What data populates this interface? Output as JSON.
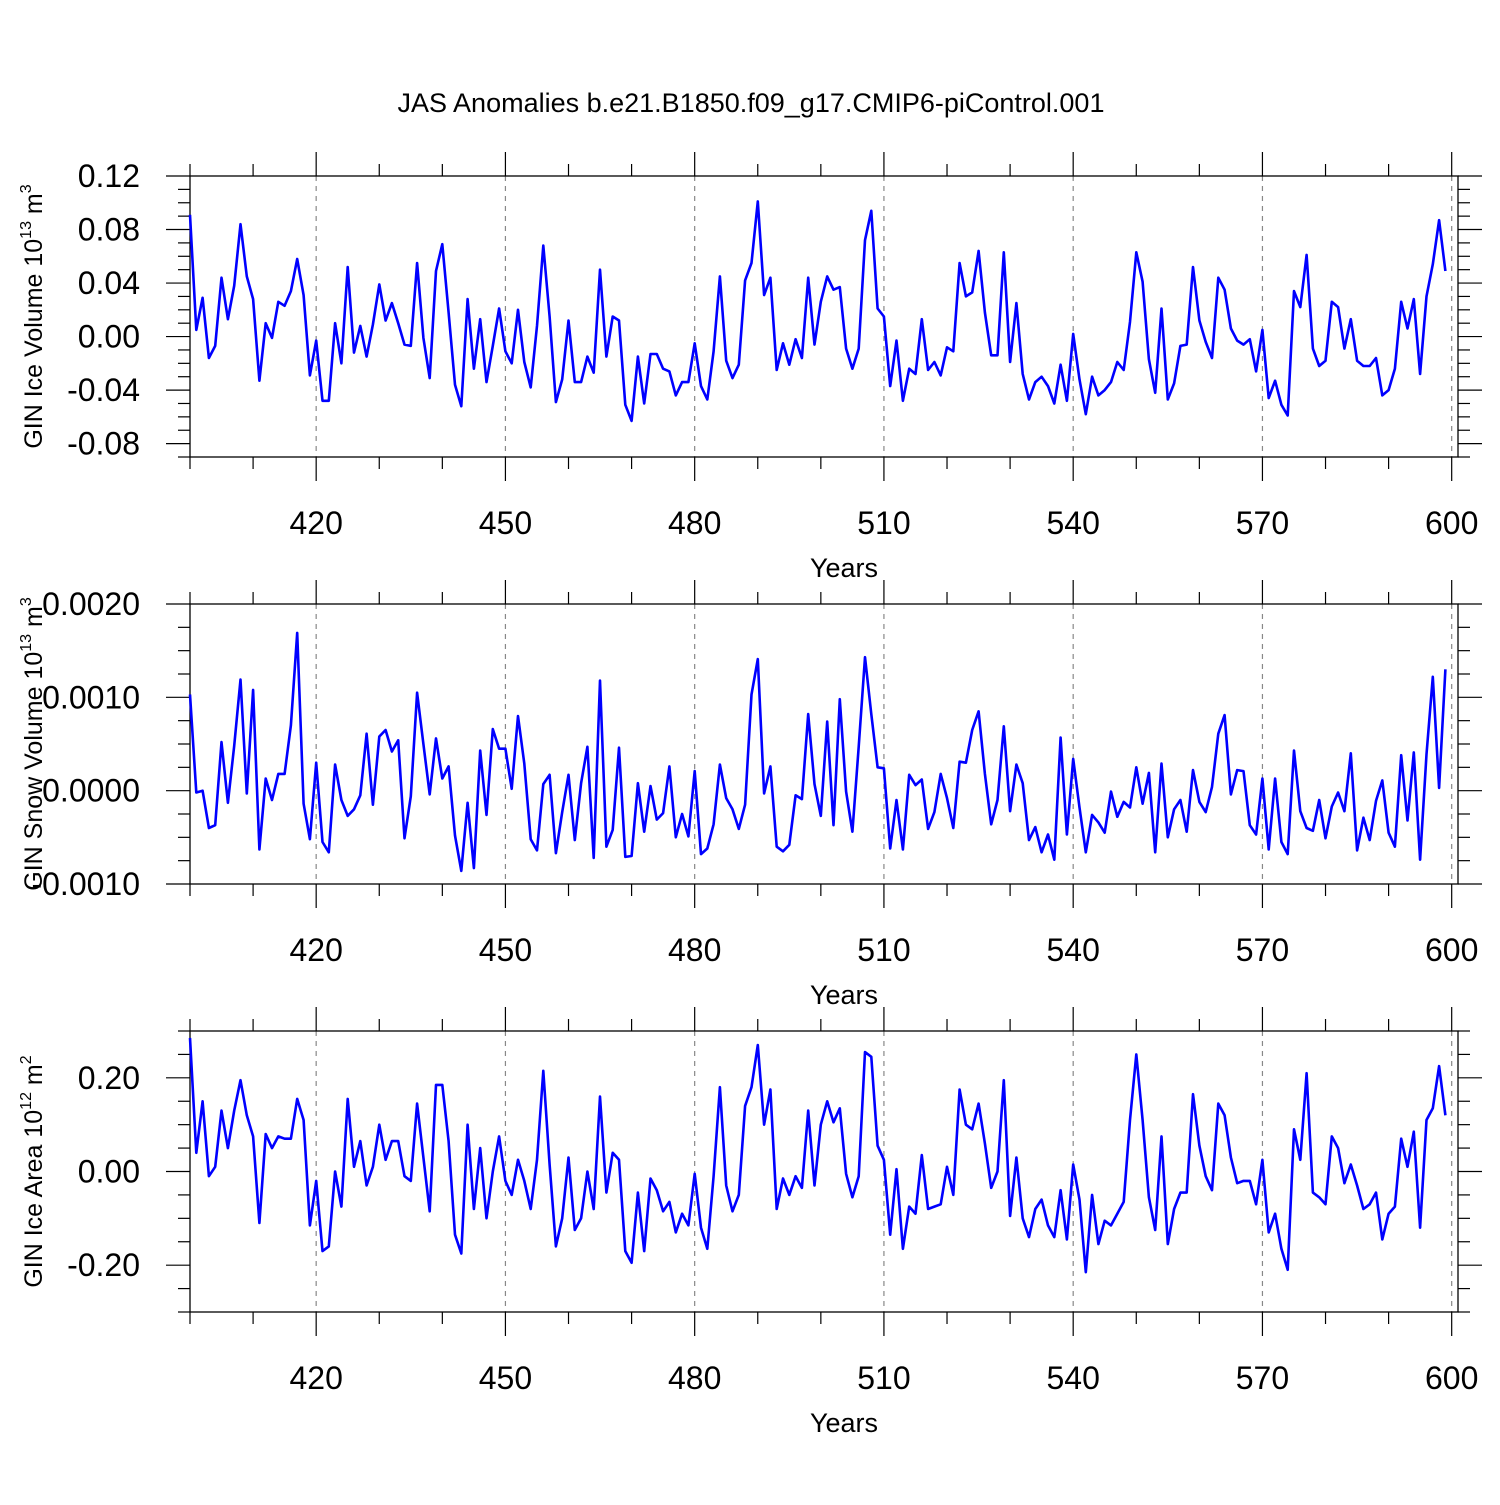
{
  "title": "JAS Anomalies b.e21.B1850.f09_g17.CMIP6-piControl.001",
  "chart_data": [
    {
      "type": "line",
      "ylabel_main": "GIN Ice Volume 10",
      "ylabel_sup": "13",
      "ylabel_unit": " m",
      "ylabel_unit_sup": "3",
      "xlabel": "Years",
      "xlim": [
        400,
        601
      ],
      "ylim": [
        -0.09,
        0.12
      ],
      "yticks": [
        -0.08,
        -0.04,
        0.0,
        0.04,
        0.08,
        0.12
      ],
      "yticklabels": [
        "-0.08",
        "-0.04",
        "0.00",
        "0.04",
        "0.08",
        "0.12"
      ],
      "xticks": [
        420,
        450,
        480,
        510,
        540,
        570,
        600
      ],
      "xticklabels": [
        "420",
        "450",
        "480",
        "510",
        "540",
        "570",
        "600"
      ],
      "line_color": "#0000ff",
      "x_start": 400,
      "values": [
        0.091,
        0.005,
        0.029,
        -0.016,
        -0.007,
        0.044,
        0.013,
        0.038,
        0.084,
        0.045,
        0.028,
        -0.033,
        0.01,
        -0.001,
        0.026,
        0.023,
        0.034,
        0.058,
        0.031,
        -0.029,
        -0.003,
        -0.048,
        -0.048,
        0.01,
        -0.02,
        0.052,
        -0.012,
        0.008,
        -0.015,
        0.009,
        0.039,
        0.012,
        0.025,
        0.01,
        -0.006,
        -0.007,
        0.055,
        -0.001,
        -0.031,
        0.049,
        0.069,
        0.018,
        -0.036,
        -0.052,
        0.028,
        -0.024,
        0.013,
        -0.034,
        -0.007,
        0.021,
        -0.011,
        -0.02,
        0.02,
        -0.019,
        -0.038,
        0.008,
        0.068,
        0.015,
        -0.049,
        -0.032,
        0.012,
        -0.034,
        -0.034,
        -0.015,
        -0.027,
        0.05,
        -0.015,
        0.015,
        0.012,
        -0.051,
        -0.063,
        -0.015,
        -0.05,
        -0.013,
        -0.013,
        -0.024,
        -0.026,
        -0.044,
        -0.034,
        -0.034,
        -0.005,
        -0.037,
        -0.047,
        -0.011,
        0.045,
        -0.018,
        -0.031,
        -0.021,
        0.042,
        0.055,
        0.101,
        0.031,
        0.044,
        -0.025,
        -0.005,
        -0.021,
        -0.002,
        -0.016,
        0.044,
        -0.006,
        0.026,
        0.045,
        0.035,
        0.037,
        -0.009,
        -0.024,
        -0.009,
        0.072,
        0.094,
        0.021,
        0.015,
        -0.037,
        -0.003,
        -0.048,
        -0.024,
        -0.028,
        0.013,
        -0.025,
        -0.019,
        -0.029,
        -0.008,
        -0.011,
        0.055,
        0.03,
        0.033,
        0.064,
        0.018,
        -0.014,
        -0.014,
        0.063,
        -0.019,
        0.025,
        -0.028,
        -0.047,
        -0.034,
        -0.03,
        -0.037,
        -0.05,
        -0.021,
        -0.048,
        0.002,
        -0.032,
        -0.058,
        -0.03,
        -0.044,
        -0.04,
        -0.034,
        -0.019,
        -0.025,
        0.011,
        0.063,
        0.041,
        -0.017,
        -0.042,
        0.021,
        -0.047,
        -0.035,
        -0.007,
        -0.006,
        0.052,
        0.012,
        -0.004,
        -0.016,
        0.044,
        0.035,
        0.006,
        -0.003,
        -0.006,
        -0.002,
        -0.026,
        0.005,
        -0.046,
        -0.033,
        -0.051,
        -0.059,
        0.034,
        0.022,
        0.061,
        -0.009,
        -0.022,
        -0.018,
        0.026,
        0.022,
        -0.009,
        0.013,
        -0.018,
        -0.022,
        -0.022,
        -0.016,
        -0.044,
        -0.04,
        -0.024,
        0.026,
        0.006,
        0.028,
        -0.028,
        0.03,
        0.054,
        0.087,
        0.049
      ]
    },
    {
      "type": "line",
      "ylabel_main": "GIN Snow Volume 10",
      "ylabel_sup": "13",
      "ylabel_unit": " m",
      "ylabel_unit_sup": "3",
      "xlabel": "Years",
      "xlim": [
        400,
        601
      ],
      "ylim": [
        -0.001,
        0.002
      ],
      "yticks": [
        -0.001,
        0.0,
        0.001,
        0.002
      ],
      "yticklabels": [
        "-0.0010",
        "0.0000",
        "0.0010",
        "0.0020"
      ],
      "xticks": [
        420,
        450,
        480,
        510,
        540,
        570,
        600
      ],
      "xticklabels": [
        "420",
        "450",
        "480",
        "510",
        "540",
        "570",
        "600"
      ],
      "line_color": "#0000ff",
      "x_start": 400,
      "values": [
        0.00103,
        -2e-05,
        0.0,
        -0.0004,
        -0.00037,
        0.00052,
        -0.00013,
        0.00048,
        0.00119,
        -3e-05,
        0.00108,
        -0.00063,
        0.00013,
        -0.0001,
        0.00018,
        0.00018,
        0.0007,
        0.00169,
        -0.00014,
        -0.00052,
        0.0003,
        -0.00055,
        -0.00066,
        0.00028,
        -0.0001,
        -0.00027,
        -0.0002,
        -5e-05,
        0.00061,
        -0.00015,
        0.00058,
        0.00065,
        0.00042,
        0.00054,
        -0.00051,
        -6e-05,
        0.00105,
        0.0005,
        -4e-05,
        0.00056,
        0.00013,
        0.00026,
        -0.00048,
        -0.00086,
        -0.00013,
        -0.00083,
        0.00043,
        -0.00026,
        0.00066,
        0.00045,
        0.00045,
        2e-05,
        0.0008,
        0.00029,
        -0.00052,
        -0.00064,
        7e-05,
        0.00017,
        -0.00067,
        -0.00023,
        0.00017,
        -0.00053,
        8e-05,
        0.00047,
        -0.00072,
        0.00118,
        -0.0006,
        -0.00042,
        0.00046,
        -0.00071,
        -0.0007,
        8e-05,
        -0.00044,
        5e-05,
        -0.00031,
        -0.00024,
        0.00026,
        -0.0005,
        -0.00025,
        -0.00049,
        0.00021,
        -0.00068,
        -0.00062,
        -0.00036,
        0.00028,
        -8e-05,
        -0.0002,
        -0.00041,
        -0.00015,
        0.00103,
        0.00141,
        -3e-05,
        0.00026,
        -0.0006,
        -0.00065,
        -0.00058,
        -5e-05,
        -9e-05,
        0.00082,
        7e-05,
        -0.00027,
        0.00074,
        -0.00037,
        0.00098,
        -1e-05,
        -0.00044,
        0.00047,
        0.00143,
        0.00082,
        0.00025,
        0.00024,
        -0.00062,
        -0.0001,
        -0.00063,
        0.00017,
        6e-05,
        0.00012,
        -0.00041,
        -0.00023,
        0.00018,
        -8e-05,
        -0.0004,
        0.00031,
        0.0003,
        0.00065,
        0.00085,
        0.00018,
        -0.00036,
        -0.0001,
        0.00069,
        -0.00022,
        0.00028,
        8e-05,
        -0.00053,
        -0.00039,
        -0.00066,
        -0.00047,
        -0.00074,
        0.00057,
        -0.00047,
        0.00034,
        -0.00018,
        -0.00066,
        -0.00026,
        -0.00034,
        -0.00045,
        -1e-05,
        -0.00028,
        -0.00012,
        -0.00018,
        0.00025,
        -0.00014,
        0.00019,
        -0.00066,
        0.00029,
        -0.0005,
        -0.0002,
        -0.0001,
        -0.00044,
        0.00022,
        -0.00012,
        -0.00023,
        4e-05,
        0.00061,
        0.00081,
        -4e-05,
        0.00022,
        0.00021,
        -0.00037,
        -0.00047,
        0.00013,
        -0.00063,
        0.00013,
        -0.00055,
        -0.00068,
        0.00043,
        -0.00022,
        -0.0004,
        -0.00043,
        -0.0001,
        -0.00051,
        -0.00017,
        -2e-05,
        -0.00022,
        0.0004,
        -0.00064,
        -0.00029,
        -0.00053,
        -0.00011,
        0.00011,
        -0.00045,
        -0.0006,
        0.00038,
        -0.00032,
        0.00041,
        -0.00074,
        0.00039,
        0.00122,
        3e-05,
        0.0013
      ]
    },
    {
      "type": "line",
      "ylabel_main": "GIN Ice Area 10",
      "ylabel_sup": "12",
      "ylabel_unit": " m",
      "ylabel_unit_sup": "2",
      "xlabel": "Years",
      "xlim": [
        400,
        601
      ],
      "ylim": [
        -0.3,
        0.3
      ],
      "yticks": [
        -0.2,
        0.0,
        0.2
      ],
      "yticklabels": [
        "-0.20",
        "0.00",
        "0.20"
      ],
      "xticks": [
        420,
        450,
        480,
        510,
        540,
        570,
        600
      ],
      "xticklabels": [
        "420",
        "450",
        "480",
        "510",
        "540",
        "570",
        "600"
      ],
      "line_color": "#0000ff",
      "x_start": 400,
      "values": [
        0.285,
        0.04,
        0.15,
        -0.01,
        0.01,
        0.13,
        0.05,
        0.13,
        0.195,
        0.12,
        0.075,
        -0.11,
        0.08,
        0.05,
        0.075,
        0.07,
        0.07,
        0.155,
        0.11,
        -0.115,
        -0.02,
        -0.17,
        -0.16,
        0.0,
        -0.075,
        0.155,
        0.01,
        0.065,
        -0.03,
        0.01,
        0.1,
        0.025,
        0.065,
        0.065,
        -0.01,
        -0.02,
        0.145,
        0.03,
        -0.085,
        0.185,
        0.185,
        0.065,
        -0.135,
        -0.175,
        0.1,
        -0.08,
        0.05,
        -0.1,
        0.0,
        0.075,
        -0.02,
        -0.05,
        0.025,
        -0.02,
        -0.08,
        0.025,
        0.215,
        0.015,
        -0.16,
        -0.1,
        0.03,
        -0.125,
        -0.1,
        0.0,
        -0.08,
        0.16,
        -0.045,
        0.04,
        0.025,
        -0.17,
        -0.195,
        -0.045,
        -0.17,
        -0.015,
        -0.04,
        -0.085,
        -0.065,
        -0.13,
        -0.09,
        -0.115,
        -0.005,
        -0.12,
        -0.165,
        -0.01,
        0.18,
        -0.03,
        -0.085,
        -0.05,
        0.14,
        0.18,
        0.27,
        0.1,
        0.175,
        -0.08,
        -0.015,
        -0.05,
        -0.01,
        -0.035,
        0.13,
        -0.03,
        0.1,
        0.15,
        0.105,
        0.135,
        -0.005,
        -0.055,
        -0.01,
        0.255,
        0.245,
        0.055,
        0.025,
        -0.135,
        0.005,
        -0.165,
        -0.075,
        -0.09,
        0.035,
        -0.08,
        -0.075,
        -0.07,
        0.01,
        -0.05,
        0.175,
        0.1,
        0.09,
        0.145,
        0.06,
        -0.035,
        0.0,
        0.195,
        -0.095,
        0.03,
        -0.1,
        -0.14,
        -0.08,
        -0.06,
        -0.115,
        -0.14,
        -0.04,
        -0.145,
        0.015,
        -0.06,
        -0.215,
        -0.05,
        -0.155,
        -0.105,
        -0.115,
        -0.09,
        -0.065,
        0.11,
        0.25,
        0.11,
        -0.055,
        -0.125,
        0.075,
        -0.155,
        -0.08,
        -0.045,
        -0.045,
        0.165,
        0.055,
        -0.01,
        -0.04,
        0.145,
        0.12,
        0.03,
        -0.025,
        -0.02,
        -0.02,
        -0.07,
        0.025,
        -0.13,
        -0.09,
        -0.165,
        -0.21,
        0.09,
        0.025,
        0.21,
        -0.045,
        -0.055,
        -0.07,
        0.075,
        0.05,
        -0.025,
        0.015,
        -0.03,
        -0.08,
        -0.07,
        -0.045,
        -0.145,
        -0.09,
        -0.075,
        0.07,
        0.01,
        0.085,
        -0.12,
        0.11,
        0.135,
        0.225,
        0.12
      ]
    }
  ]
}
